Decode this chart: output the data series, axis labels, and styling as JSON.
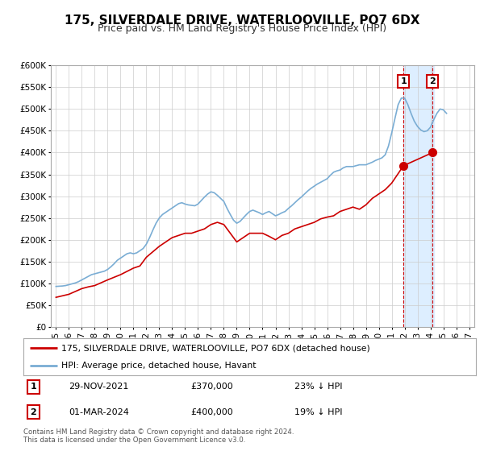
{
  "title": "175, SILVERDALE DRIVE, WATERLOOVILLE, PO7 6DX",
  "subtitle": "Price paid vs. HM Land Registry's House Price Index (HPI)",
  "ylim": [
    0,
    600000
  ],
  "yticks": [
    0,
    50000,
    100000,
    150000,
    200000,
    250000,
    300000,
    350000,
    400000,
    450000,
    500000,
    550000,
    600000
  ],
  "ytick_labels": [
    "£0",
    "£50K",
    "£100K",
    "£150K",
    "£200K",
    "£250K",
    "£300K",
    "£350K",
    "£400K",
    "£450K",
    "£500K",
    "£550K",
    "£600K"
  ],
  "xlim_start": 1994.6,
  "xlim_end": 2027.4,
  "xticks": [
    1995,
    1996,
    1997,
    1998,
    1999,
    2000,
    2001,
    2002,
    2003,
    2004,
    2005,
    2006,
    2007,
    2008,
    2009,
    2010,
    2011,
    2012,
    2013,
    2014,
    2015,
    2016,
    2017,
    2018,
    2019,
    2020,
    2021,
    2022,
    2023,
    2024,
    2025,
    2026,
    2027
  ],
  "highlight_start": 2021.9,
  "highlight_end": 2024.3,
  "sale1_x": 2021.917,
  "sale1_y": 370000,
  "sale2_x": 2024.167,
  "sale2_y": 400000,
  "sale1_label": "1",
  "sale2_label": "2",
  "red_color": "#cc0000",
  "blue_color": "#7aadd4",
  "highlight_color": "#ddeeff",
  "legend1_text": "175, SILVERDALE DRIVE, WATERLOOVILLE, PO7 6DX (detached house)",
  "legend2_text": "HPI: Average price, detached house, Havant",
  "annotation1_date": "29-NOV-2021",
  "annotation1_price": "£370,000",
  "annotation1_hpi": "23% ↓ HPI",
  "annotation2_date": "01-MAR-2024",
  "annotation2_price": "£400,000",
  "annotation2_hpi": "19% ↓ HPI",
  "footer": "Contains HM Land Registry data © Crown copyright and database right 2024.\nThis data is licensed under the Open Government Licence v3.0.",
  "background_color": "#ffffff",
  "plot_bg_color": "#ffffff",
  "grid_color": "#cccccc",
  "title_fontsize": 11,
  "subtitle_fontsize": 9,
  "hpi_years": [
    1995.0,
    1995.25,
    1995.5,
    1995.75,
    1996.0,
    1996.25,
    1996.5,
    1996.75,
    1997.0,
    1997.25,
    1997.5,
    1997.75,
    1998.0,
    1998.25,
    1998.5,
    1998.75,
    1999.0,
    1999.25,
    1999.5,
    1999.75,
    2000.0,
    2000.25,
    2000.5,
    2000.75,
    2001.0,
    2001.25,
    2001.5,
    2001.75,
    2002.0,
    2002.25,
    2002.5,
    2002.75,
    2003.0,
    2003.25,
    2003.5,
    2003.75,
    2004.0,
    2004.25,
    2004.5,
    2004.75,
    2005.0,
    2005.25,
    2005.5,
    2005.75,
    2006.0,
    2006.25,
    2006.5,
    2006.75,
    2007.0,
    2007.25,
    2007.5,
    2007.75,
    2008.0,
    2008.25,
    2008.5,
    2008.75,
    2009.0,
    2009.25,
    2009.5,
    2009.75,
    2010.0,
    2010.25,
    2010.5,
    2010.75,
    2011.0,
    2011.25,
    2011.5,
    2011.75,
    2012.0,
    2012.25,
    2012.5,
    2012.75,
    2013.0,
    2013.25,
    2013.5,
    2013.75,
    2014.0,
    2014.25,
    2014.5,
    2014.75,
    2015.0,
    2015.25,
    2015.5,
    2015.75,
    2016.0,
    2016.25,
    2016.5,
    2016.75,
    2017.0,
    2017.25,
    2017.5,
    2017.75,
    2018.0,
    2018.25,
    2018.5,
    2018.75,
    2019.0,
    2019.25,
    2019.5,
    2019.75,
    2020.0,
    2020.25,
    2020.5,
    2020.75,
    2021.0,
    2021.25,
    2021.5,
    2021.75,
    2022.0,
    2022.25,
    2022.5,
    2022.75,
    2023.0,
    2023.25,
    2023.5,
    2023.75,
    2024.0,
    2024.25,
    2024.5,
    2024.75,
    2025.0,
    2025.25
  ],
  "hpi_values": [
    93000,
    93500,
    94000,
    95000,
    97000,
    99000,
    101000,
    104000,
    108000,
    112000,
    116000,
    120000,
    122000,
    124000,
    126000,
    128000,
    132000,
    138000,
    145000,
    153000,
    158000,
    163000,
    168000,
    170000,
    168000,
    170000,
    175000,
    180000,
    190000,
    205000,
    222000,
    238000,
    250000,
    258000,
    263000,
    268000,
    273000,
    278000,
    283000,
    285000,
    282000,
    280000,
    279000,
    278000,
    282000,
    290000,
    298000,
    305000,
    310000,
    308000,
    302000,
    295000,
    288000,
    272000,
    258000,
    245000,
    238000,
    242000,
    250000,
    258000,
    265000,
    268000,
    265000,
    262000,
    258000,
    262000,
    265000,
    260000,
    255000,
    258000,
    262000,
    265000,
    272000,
    278000,
    285000,
    292000,
    298000,
    305000,
    312000,
    318000,
    323000,
    328000,
    332000,
    336000,
    340000,
    348000,
    355000,
    358000,
    360000,
    365000,
    368000,
    368000,
    368000,
    370000,
    372000,
    372000,
    372000,
    375000,
    378000,
    382000,
    385000,
    388000,
    395000,
    415000,
    445000,
    478000,
    510000,
    525000,
    525000,
    510000,
    490000,
    472000,
    460000,
    452000,
    448000,
    450000,
    458000,
    475000,
    490000,
    500000,
    498000,
    490000
  ],
  "house_years": [
    1995.0,
    1996.0,
    1997.0,
    1997.5,
    1998.0,
    1999.0,
    2000.0,
    2001.0,
    2001.5,
    2002.0,
    2003.0,
    2003.5,
    2004.0,
    2004.5,
    2005.0,
    2005.5,
    2006.0,
    2006.5,
    2007.0,
    2007.5,
    2008.0,
    2009.0,
    2009.5,
    2010.0,
    2010.5,
    2011.0,
    2011.5,
    2012.0,
    2012.5,
    2013.0,
    2013.5,
    2014.0,
    2014.5,
    2015.0,
    2015.5,
    2016.0,
    2016.5,
    2017.0,
    2017.5,
    2018.0,
    2018.5,
    2019.0,
    2019.5,
    2020.0,
    2020.5,
    2021.0,
    2021.917,
    2024.167
  ],
  "house_values": [
    68000,
    75000,
    88000,
    92000,
    95000,
    108000,
    120000,
    135000,
    140000,
    160000,
    185000,
    195000,
    205000,
    210000,
    215000,
    215000,
    220000,
    225000,
    235000,
    240000,
    235000,
    195000,
    205000,
    215000,
    215000,
    215000,
    208000,
    200000,
    210000,
    215000,
    225000,
    230000,
    235000,
    240000,
    248000,
    252000,
    255000,
    265000,
    270000,
    275000,
    270000,
    280000,
    295000,
    305000,
    315000,
    330000,
    370000,
    400000
  ]
}
